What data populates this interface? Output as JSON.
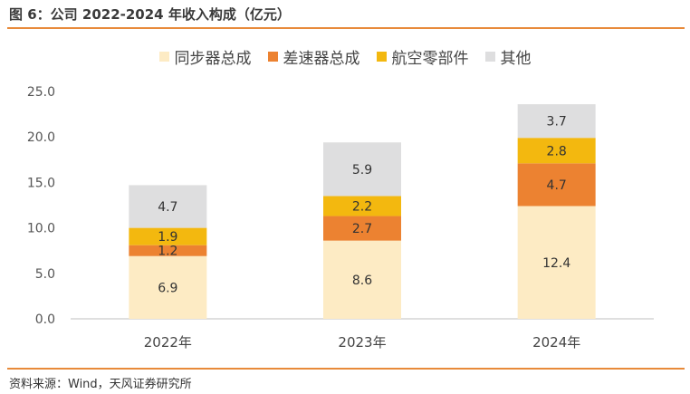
{
  "figure": {
    "title": "图 6：公司 2022-2024 年收入构成（亿元）",
    "source": "资料来源：Wind，天风证券研究所"
  },
  "colors": {
    "rule": "#e88a3a",
    "series": [
      "#fdebc4",
      "#ec8231",
      "#f3b80f",
      "#dededf"
    ]
  },
  "chart_data": {
    "type": "bar",
    "stacked": true,
    "categories": [
      "2022年",
      "2023年",
      "2024年"
    ],
    "series": [
      {
        "name": "同步器总成",
        "values": [
          6.9,
          8.6,
          12.4
        ]
      },
      {
        "name": "差速器总成",
        "values": [
          1.2,
          2.7,
          4.7
        ]
      },
      {
        "name": "航空零部件",
        "values": [
          1.9,
          2.2,
          2.8
        ]
      },
      {
        "name": "其他",
        "values": [
          4.7,
          5.9,
          3.7
        ]
      }
    ],
    "value_labels": [
      [
        "6.9",
        "8.6",
        "12.4"
      ],
      [
        "1.2",
        "2.7",
        "4.7"
      ],
      [
        "1.9",
        "2.2",
        "2.8"
      ],
      [
        "4.7",
        "5.9",
        "3.7"
      ]
    ],
    "ylim": [
      0,
      25
    ],
    "yticks": [
      "0.0",
      "5.0",
      "10.0",
      "15.0",
      "20.0",
      "25.0"
    ],
    "grid": false,
    "legend_position": "top"
  }
}
